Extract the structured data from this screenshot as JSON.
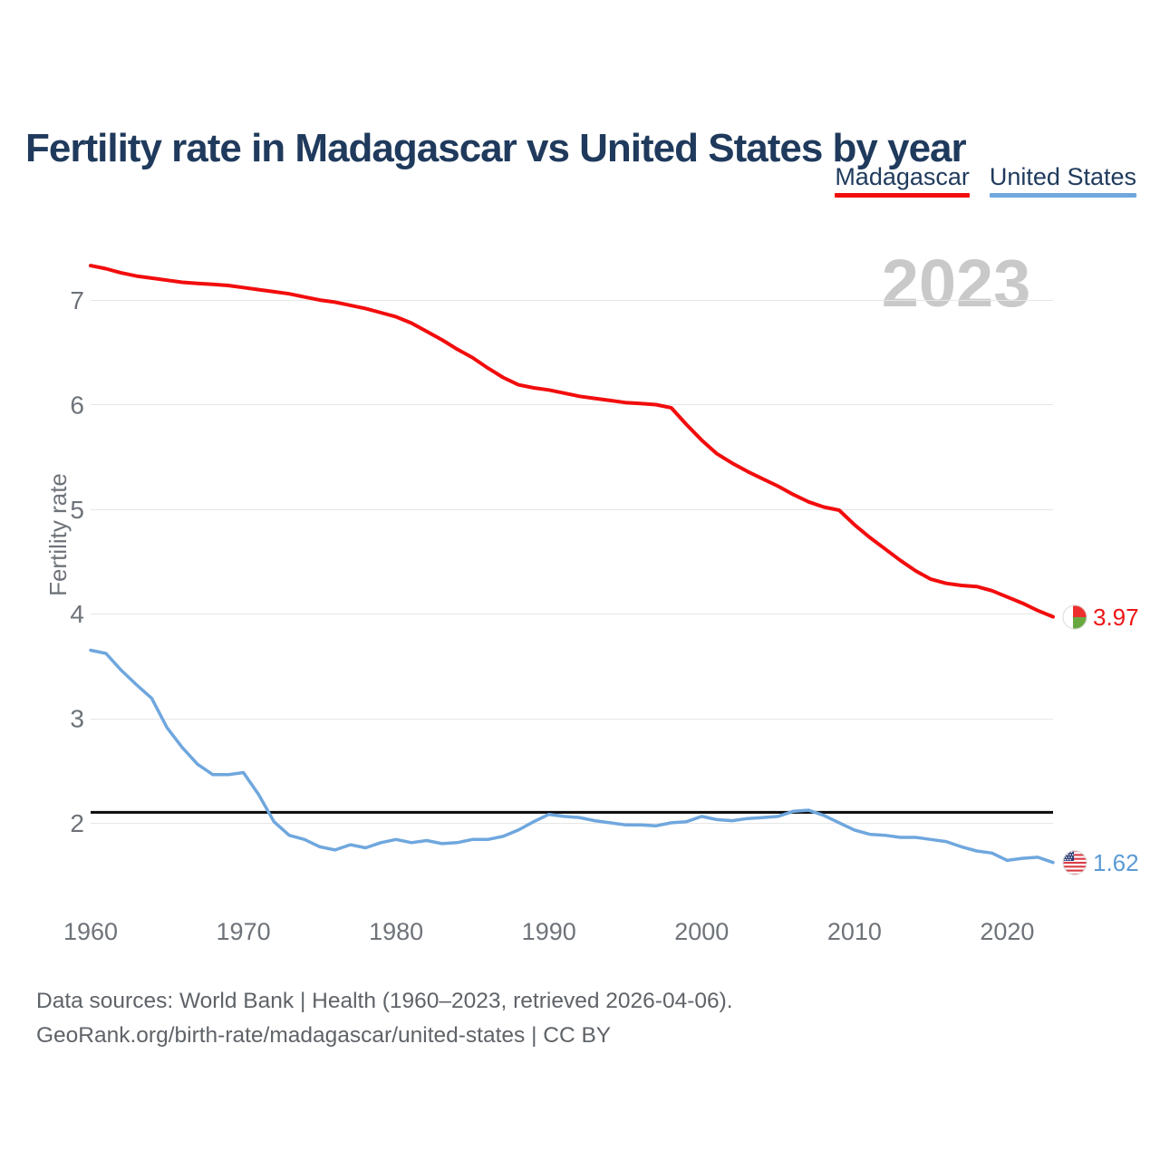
{
  "header": {
    "title": "Fertility rate in Madagascar vs United States by year"
  },
  "watermark": {
    "text": "2023"
  },
  "footer": {
    "line1": "Data sources: World Bank | Health (1960–2023, retrieved 2026-04-06).",
    "line2": "GeoRank.org/birth-rate/madagascar/united-states | CC BY"
  },
  "chart_data": {
    "type": "line",
    "title": "Fertility rate in Madagascar vs United States by year",
    "xlabel": "",
    "ylabel": "Fertility rate",
    "grid": true,
    "legend_position": "top-right",
    "xlim": [
      1960,
      2023
    ],
    "ylim": [
      1.6,
      7.4
    ],
    "xticks": [
      1960,
      1970,
      1980,
      1990,
      2000,
      2010,
      2020
    ],
    "yticks": [
      2,
      3,
      4,
      5,
      6,
      7
    ],
    "x_start_year": 1960,
    "x_step_years": 1,
    "reference_line": {
      "value": 2.1,
      "color": "#0a0a0a"
    },
    "grid_color": "#e6e6e6",
    "tick_color": "#6e7379",
    "series": [
      {
        "name": "Madagascar",
        "color": "#f20d0d",
        "label_color": "#ee1414",
        "line_width": 4,
        "end_label": "3.97",
        "values": [
          7.33,
          7.3,
          7.26,
          7.23,
          7.21,
          7.19,
          7.17,
          7.16,
          7.15,
          7.14,
          7.12,
          7.1,
          7.08,
          7.06,
          7.03,
          7.0,
          6.98,
          6.95,
          6.92,
          6.88,
          6.84,
          6.78,
          6.7,
          6.62,
          6.53,
          6.45,
          6.35,
          6.26,
          6.19,
          6.16,
          6.14,
          6.11,
          6.08,
          6.06,
          6.04,
          6.02,
          6.01,
          6.0,
          5.97,
          5.81,
          5.66,
          5.53,
          5.44,
          5.36,
          5.29,
          5.22,
          5.14,
          5.07,
          5.02,
          4.99,
          4.85,
          4.73,
          4.62,
          4.51,
          4.41,
          4.33,
          4.29,
          4.27,
          4.26,
          4.22,
          4.16,
          4.1,
          4.03,
          3.97
        ]
      },
      {
        "name": "United States",
        "color": "#6fa7de",
        "label_color": "#5b9bd5",
        "line_width": 3.5,
        "end_label": "1.62",
        "values": [
          3.65,
          3.62,
          3.46,
          3.32,
          3.19,
          2.91,
          2.72,
          2.56,
          2.46,
          2.46,
          2.48,
          2.27,
          2.01,
          1.88,
          1.84,
          1.77,
          1.74,
          1.79,
          1.76,
          1.81,
          1.84,
          1.81,
          1.83,
          1.8,
          1.81,
          1.84,
          1.84,
          1.87,
          1.93,
          2.01,
          2.08,
          2.06,
          2.05,
          2.02,
          2.0,
          1.98,
          1.98,
          1.97,
          2.0,
          2.01,
          2.06,
          2.03,
          2.02,
          2.04,
          2.05,
          2.06,
          2.11,
          2.12,
          2.07,
          2.0,
          1.93,
          1.89,
          1.88,
          1.86,
          1.86,
          1.84,
          1.82,
          1.77,
          1.73,
          1.71,
          1.64,
          1.66,
          1.67,
          1.62
        ]
      }
    ]
  }
}
